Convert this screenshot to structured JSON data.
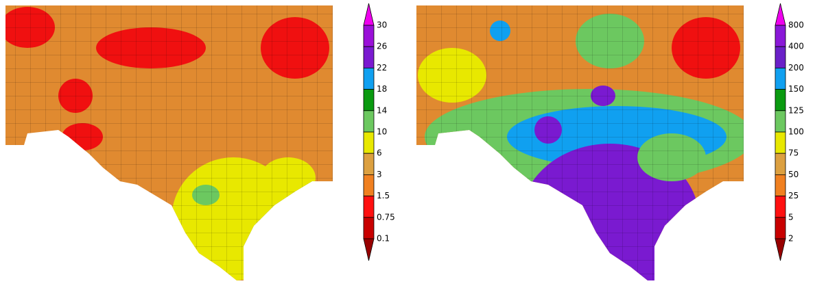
{
  "maps": [
    {
      "colorbar": {
        "labels": [
          "30",
          "26",
          "22",
          "18",
          "14",
          "10",
          "6",
          "3",
          "1.5",
          "0.75",
          "0.1"
        ],
        "colors": [
          "#ee00ee",
          "#9a10d8",
          "#7a1ad0",
          "#10a0f0",
          "#0a9a10",
          "#6cc860",
          "#e8e800",
          "#dca040",
          "#f08020",
          "#ff1010",
          "#c80000",
          "#980000"
        ]
      }
    },
    {
      "colorbar": {
        "labels": [
          "800",
          "400",
          "200",
          "150",
          "125",
          "100",
          "75",
          "50",
          "25",
          "5",
          "2"
        ],
        "colors": [
          "#ee00ee",
          "#8a18d8",
          "#6a20c8",
          "#10a0f0",
          "#0a9a10",
          "#6cc860",
          "#e8e800",
          "#dca040",
          "#f08020",
          "#ff1010",
          "#c80000",
          "#980000"
        ]
      }
    }
  ]
}
